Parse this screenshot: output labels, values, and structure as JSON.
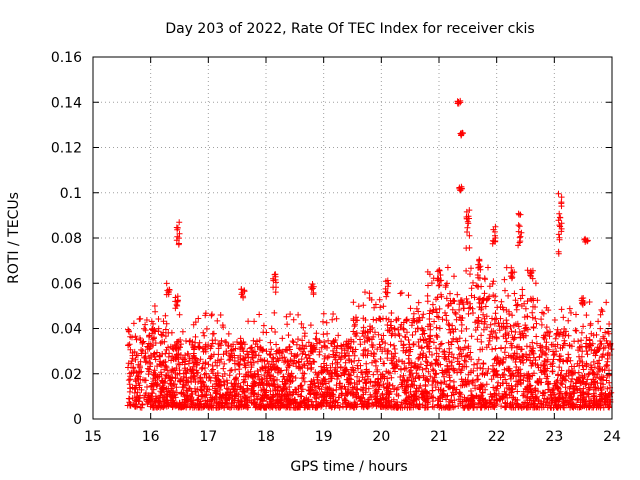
{
  "chart_data": {
    "type": "scatter",
    "title": "Day 203 of 2022, Rate Of TEC Index for receiver ckis",
    "xlabel": "GPS time / hours",
    "ylabel": "ROTI / TECUs",
    "xlim": [
      15,
      24
    ],
    "ylim": [
      0,
      0.16
    ],
    "xticks": [
      15,
      16,
      17,
      18,
      19,
      20,
      21,
      22,
      23,
      24
    ],
    "yticks": [
      0,
      0.02,
      0.04,
      0.06,
      0.08,
      0.1,
      0.12,
      0.14,
      0.16
    ],
    "xtick_labels": [
      "15",
      "16",
      "17",
      "18",
      "19",
      "20",
      "21",
      "22",
      "23",
      "24"
    ],
    "ytick_labels": [
      "0",
      "0.02",
      "0.04",
      "0.06",
      "0.08",
      "0.1",
      "0.12",
      "0.14",
      "0.16"
    ],
    "grid": true,
    "marker": "+",
    "marker_color": "#ff0000",
    "data_start_hour": 15.6,
    "data_end_hour": 24.0,
    "baseline_bands": [
      {
        "x": [
          15.6,
          16.3
        ],
        "y": [
          0.005,
          0.04
        ]
      },
      {
        "x": [
          16.3,
          17.5
        ],
        "y": [
          0.005,
          0.035
        ]
      },
      {
        "x": [
          17.5,
          19.5
        ],
        "y": [
          0.005,
          0.035
        ]
      },
      {
        "x": [
          19.5,
          20.8
        ],
        "y": [
          0.005,
          0.045
        ]
      },
      {
        "x": [
          20.8,
          22.8
        ],
        "y": [
          0.005,
          0.055
        ]
      },
      {
        "x": [
          22.8,
          24.0
        ],
        "y": [
          0.005,
          0.04
        ]
      }
    ],
    "clusters": [
      {
        "x": 16.48,
        "y": [
          0.077,
          0.088
        ]
      },
      {
        "x": 16.3,
        "y": [
          0.055,
          0.06
        ]
      },
      {
        "x": 16.45,
        "y": [
          0.048,
          0.055
        ]
      },
      {
        "x": 17.6,
        "y": [
          0.053,
          0.058
        ]
      },
      {
        "x": 18.15,
        "y": [
          0.055,
          0.064
        ]
      },
      {
        "x": 18.8,
        "y": [
          0.055,
          0.06
        ]
      },
      {
        "x": 20.1,
        "y": [
          0.055,
          0.063
        ]
      },
      {
        "x": 21.0,
        "y": [
          0.058,
          0.066
        ]
      },
      {
        "x": 21.35,
        "y": [
          0.139,
          0.141
        ]
      },
      {
        "x": 21.4,
        "y": [
          0.125,
          0.127
        ]
      },
      {
        "x": 21.38,
        "y": [
          0.101,
          0.103
        ]
      },
      {
        "x": 21.5,
        "y": [
          0.075,
          0.094
        ]
      },
      {
        "x": 21.7,
        "y": [
          0.058,
          0.073
        ]
      },
      {
        "x": 21.95,
        "y": [
          0.075,
          0.086
        ]
      },
      {
        "x": 22.25,
        "y": [
          0.062,
          0.067
        ]
      },
      {
        "x": 22.4,
        "y": [
          0.075,
          0.091
        ]
      },
      {
        "x": 22.6,
        "y": [
          0.06,
          0.066
        ]
      },
      {
        "x": 23.1,
        "y": [
          0.07,
          0.103
        ]
      },
      {
        "x": 23.5,
        "y": [
          0.05,
          0.055
        ]
      },
      {
        "x": 23.55,
        "y": [
          0.078,
          0.08
        ]
      }
    ]
  }
}
